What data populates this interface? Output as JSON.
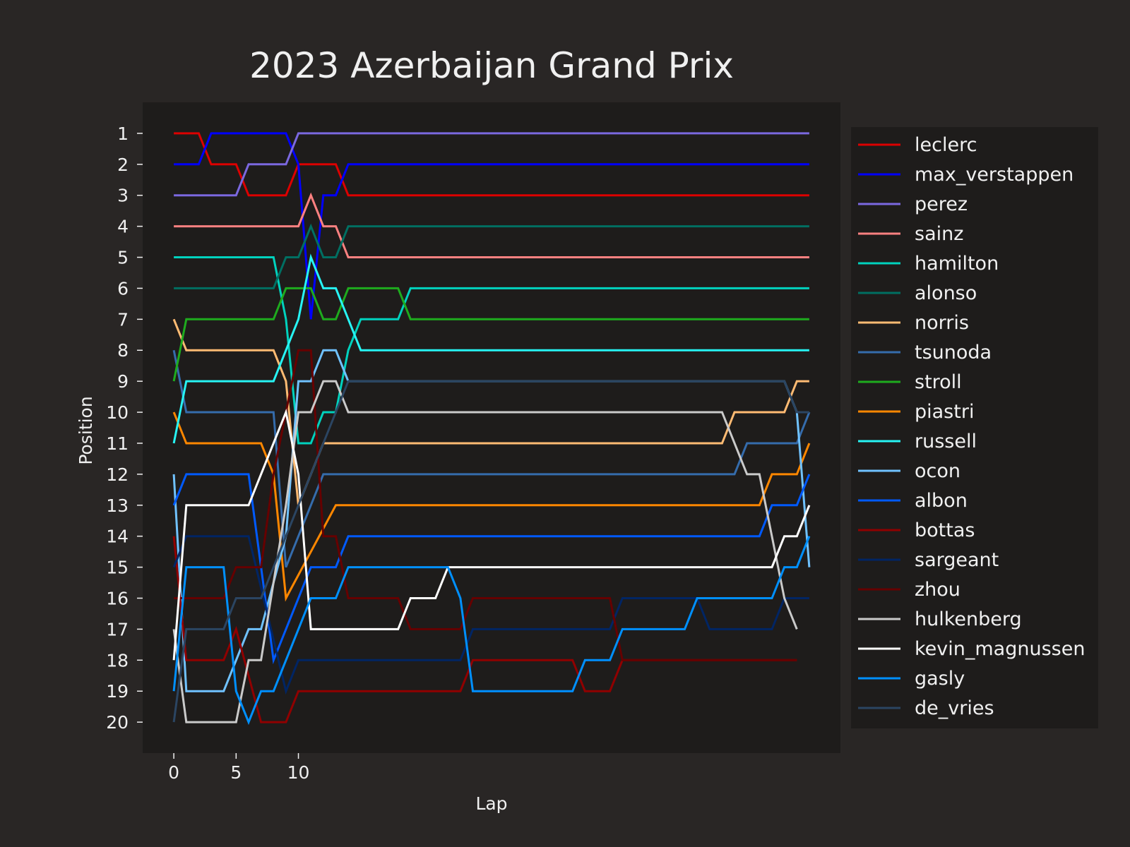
{
  "chart_data": {
    "type": "line",
    "title": "2023 Azerbaijan Grand Prix",
    "xlabel": "Lap",
    "ylabel": "Position",
    "xlim": [
      -2.5,
      53.5
    ],
    "ylim": [
      21,
      0
    ],
    "xticks": [
      0,
      5,
      10
    ],
    "yticks": [
      1,
      2,
      3,
      4,
      5,
      6,
      7,
      8,
      9,
      10,
      11,
      12,
      13,
      14,
      15,
      16,
      17,
      18,
      19,
      20
    ],
    "grid": false,
    "legend": "right",
    "colors": {
      "background": "#292625",
      "plot_background": "#1e1c1b",
      "legend_background": "#1e1c1b",
      "text": "#f0f0f0"
    },
    "series": [
      {
        "name": "leclerc",
        "color": "#dc0000",
        "positions": [
          [
            0,
            1
          ],
          [
            2,
            1
          ],
          [
            3,
            2
          ],
          [
            5,
            2
          ],
          [
            6,
            3
          ],
          [
            9,
            3
          ],
          [
            10,
            2
          ],
          [
            13,
            2
          ],
          [
            14,
            3
          ],
          [
            51,
            3
          ]
        ]
      },
      {
        "name": "max_verstappen",
        "color": "#0000ff",
        "positions": [
          [
            0,
            2
          ],
          [
            2,
            2
          ],
          [
            3,
            1
          ],
          [
            9,
            1
          ],
          [
            10,
            2
          ],
          [
            11,
            7
          ],
          [
            12,
            3
          ],
          [
            13,
            3
          ],
          [
            14,
            2
          ],
          [
            51,
            2
          ]
        ]
      },
      {
        "name": "perez",
        "color": "#7b68e0",
        "positions": [
          [
            0,
            3
          ],
          [
            5,
            3
          ],
          [
            6,
            2
          ],
          [
            9,
            2
          ],
          [
            10,
            1
          ],
          [
            51,
            1
          ]
        ]
      },
      {
        "name": "sainz",
        "color": "#ff8181",
        "positions": [
          [
            0,
            4
          ],
          [
            10,
            4
          ],
          [
            11,
            3
          ],
          [
            12,
            4
          ],
          [
            13,
            4
          ],
          [
            14,
            5
          ],
          [
            51,
            5
          ]
        ]
      },
      {
        "name": "hamilton",
        "color": "#00d2be",
        "positions": [
          [
            0,
            5
          ],
          [
            8,
            5
          ],
          [
            9,
            7
          ],
          [
            10,
            11
          ],
          [
            11,
            11
          ],
          [
            12,
            10
          ],
          [
            13,
            10
          ],
          [
            14,
            8
          ],
          [
            15,
            7
          ],
          [
            18,
            7
          ],
          [
            19,
            6
          ],
          [
            51,
            6
          ]
        ]
      },
      {
        "name": "alonso",
        "color": "#006f62",
        "positions": [
          [
            0,
            6
          ],
          [
            8,
            6
          ],
          [
            9,
            5
          ],
          [
            10,
            5
          ],
          [
            11,
            4
          ],
          [
            12,
            5
          ],
          [
            13,
            5
          ],
          [
            14,
            4
          ],
          [
            51,
            4
          ]
        ]
      },
      {
        "name": "norris",
        "color": "#ffbb73",
        "positions": [
          [
            0,
            7
          ],
          [
            1,
            8
          ],
          [
            8,
            8
          ],
          [
            9,
            9
          ],
          [
            10,
            13
          ],
          [
            11,
            12
          ],
          [
            12,
            11
          ],
          [
            44,
            11
          ],
          [
            45,
            10
          ],
          [
            49,
            10
          ],
          [
            50,
            9
          ],
          [
            51,
            9
          ]
        ]
      },
      {
        "name": "tsunoda",
        "color": "#356cac",
        "positions": [
          [
            0,
            8
          ],
          [
            1,
            10
          ],
          [
            8,
            10
          ],
          [
            9,
            15
          ],
          [
            10,
            14
          ],
          [
            11,
            13
          ],
          [
            12,
            12
          ],
          [
            45,
            12
          ],
          [
            46,
            11
          ],
          [
            50,
            11
          ],
          [
            51,
            10
          ]
        ]
      },
      {
        "name": "stroll",
        "color": "#1eab1e",
        "positions": [
          [
            0,
            9
          ],
          [
            1,
            7
          ],
          [
            8,
            7
          ],
          [
            9,
            6
          ],
          [
            11,
            6
          ],
          [
            12,
            7
          ],
          [
            13,
            7
          ],
          [
            14,
            6
          ],
          [
            18,
            6
          ],
          [
            19,
            7
          ],
          [
            51,
            7
          ]
        ]
      },
      {
        "name": "piastri",
        "color": "#ff8700",
        "positions": [
          [
            0,
            10
          ],
          [
            1,
            11
          ],
          [
            7,
            11
          ],
          [
            8,
            12
          ],
          [
            9,
            16
          ],
          [
            13,
            13
          ],
          [
            47,
            13
          ],
          [
            48,
            12
          ],
          [
            50,
            12
          ],
          [
            51,
            11
          ]
        ]
      },
      {
        "name": "russell",
        "color": "#27f4f4",
        "positions": [
          [
            0,
            11
          ],
          [
            1,
            9
          ],
          [
            8,
            9
          ],
          [
            10,
            7
          ],
          [
            11,
            5
          ],
          [
            12,
            6
          ],
          [
            13,
            6
          ],
          [
            15,
            8
          ],
          [
            51,
            8
          ]
        ]
      },
      {
        "name": "ocon",
        "color": "#70c2ff",
        "positions": [
          [
            0,
            12
          ],
          [
            1,
            19
          ],
          [
            4,
            19
          ],
          [
            6,
            17
          ],
          [
            7,
            17
          ],
          [
            9,
            14
          ],
          [
            10,
            9
          ],
          [
            11,
            9
          ],
          [
            12,
            8
          ],
          [
            13,
            8
          ],
          [
            14,
            9
          ],
          [
            49,
            9
          ],
          [
            50,
            10
          ],
          [
            51,
            15
          ]
        ]
      },
      {
        "name": "albon",
        "color": "#005aff",
        "positions": [
          [
            0,
            13
          ],
          [
            1,
            12
          ],
          [
            6,
            12
          ],
          [
            8,
            18
          ],
          [
            11,
            15
          ],
          [
            13,
            15
          ],
          [
            14,
            14
          ],
          [
            47,
            14
          ],
          [
            48,
            13
          ],
          [
            50,
            13
          ],
          [
            51,
            12
          ]
        ]
      },
      {
        "name": "bottas",
        "color": "#900000",
        "positions": [
          [
            0,
            14
          ],
          [
            1,
            18
          ],
          [
            4,
            18
          ],
          [
            5,
            17
          ],
          [
            7,
            20
          ],
          [
            9,
            20
          ],
          [
            10,
            19
          ],
          [
            23,
            19
          ],
          [
            24,
            18
          ],
          [
            32,
            18
          ],
          [
            33,
            19
          ],
          [
            35,
            19
          ],
          [
            36,
            18
          ],
          [
            50,
            18
          ]
        ]
      },
      {
        "name": "sargeant",
        "color": "#012564",
        "positions": [
          [
            0,
            15
          ],
          [
            1,
            14
          ],
          [
            6,
            14
          ],
          [
            9,
            19
          ],
          [
            10,
            18
          ],
          [
            23,
            18
          ],
          [
            24,
            17
          ],
          [
            35,
            17
          ],
          [
            36,
            16
          ],
          [
            42,
            16
          ],
          [
            43,
            17
          ],
          [
            48,
            17
          ],
          [
            49,
            16
          ],
          [
            51,
            16
          ]
        ]
      },
      {
        "name": "zhou",
        "color": "#660000",
        "positions": [
          [
            0,
            16
          ],
          [
            4,
            16
          ],
          [
            5,
            15
          ],
          [
            7,
            15
          ],
          [
            8,
            12
          ],
          [
            10,
            8
          ],
          [
            11,
            8
          ],
          [
            12,
            14
          ],
          [
            13,
            14
          ],
          [
            14,
            16
          ],
          [
            18,
            16
          ],
          [
            19,
            17
          ],
          [
            23,
            17
          ],
          [
            24,
            16
          ],
          [
            35,
            16
          ],
          [
            36,
            18
          ],
          [
            50,
            18
          ]
        ]
      },
      {
        "name": "hulkenberg",
        "color": "#cacaca",
        "positions": [
          [
            0,
            17
          ],
          [
            1,
            20
          ],
          [
            5,
            20
          ],
          [
            6,
            18
          ],
          [
            7,
            18
          ],
          [
            9,
            13
          ],
          [
            10,
            10
          ],
          [
            11,
            10
          ],
          [
            12,
            9
          ],
          [
            13,
            9
          ],
          [
            14,
            10
          ],
          [
            44,
            10
          ],
          [
            46,
            12
          ],
          [
            47,
            12
          ],
          [
            49,
            16
          ],
          [
            50,
            17
          ]
        ]
      },
      {
        "name": "kevin_magnussen",
        "color": "#ffffff",
        "positions": [
          [
            0,
            18
          ],
          [
            1,
            13
          ],
          [
            6,
            13
          ],
          [
            9,
            10
          ],
          [
            10,
            12
          ],
          [
            11,
            17
          ],
          [
            18,
            17
          ],
          [
            19,
            16
          ],
          [
            21,
            16
          ],
          [
            22,
            15
          ],
          [
            48,
            15
          ],
          [
            49,
            14
          ],
          [
            50,
            14
          ],
          [
            51,
            13
          ]
        ]
      },
      {
        "name": "gasly",
        "color": "#0090ff",
        "positions": [
          [
            0,
            19
          ],
          [
            1,
            15
          ],
          [
            4,
            15
          ],
          [
            5,
            19
          ],
          [
            6,
            20
          ],
          [
            7,
            19
          ],
          [
            8,
            19
          ],
          [
            11,
            16
          ],
          [
            13,
            16
          ],
          [
            14,
            15
          ],
          [
            22,
            15
          ],
          [
            23,
            16
          ],
          [
            24,
            19
          ],
          [
            32,
            19
          ],
          [
            33,
            18
          ],
          [
            35,
            18
          ],
          [
            36,
            17
          ],
          [
            41,
            17
          ],
          [
            42,
            16
          ],
          [
            48,
            16
          ],
          [
            49,
            15
          ],
          [
            50,
            15
          ],
          [
            51,
            14
          ]
        ]
      },
      {
        "name": "de_vries",
        "color": "#2b4562",
        "positions": [
          [
            0,
            20
          ],
          [
            1,
            17
          ],
          [
            4,
            17
          ],
          [
            5,
            16
          ],
          [
            7,
            16
          ],
          [
            9,
            14
          ],
          [
            10,
            13
          ],
          [
            11,
            12
          ],
          [
            12,
            11
          ],
          [
            13,
            10
          ],
          [
            14,
            9
          ],
          [
            49,
            9
          ],
          [
            50,
            10
          ],
          [
            51,
            10
          ]
        ]
      }
    ]
  }
}
